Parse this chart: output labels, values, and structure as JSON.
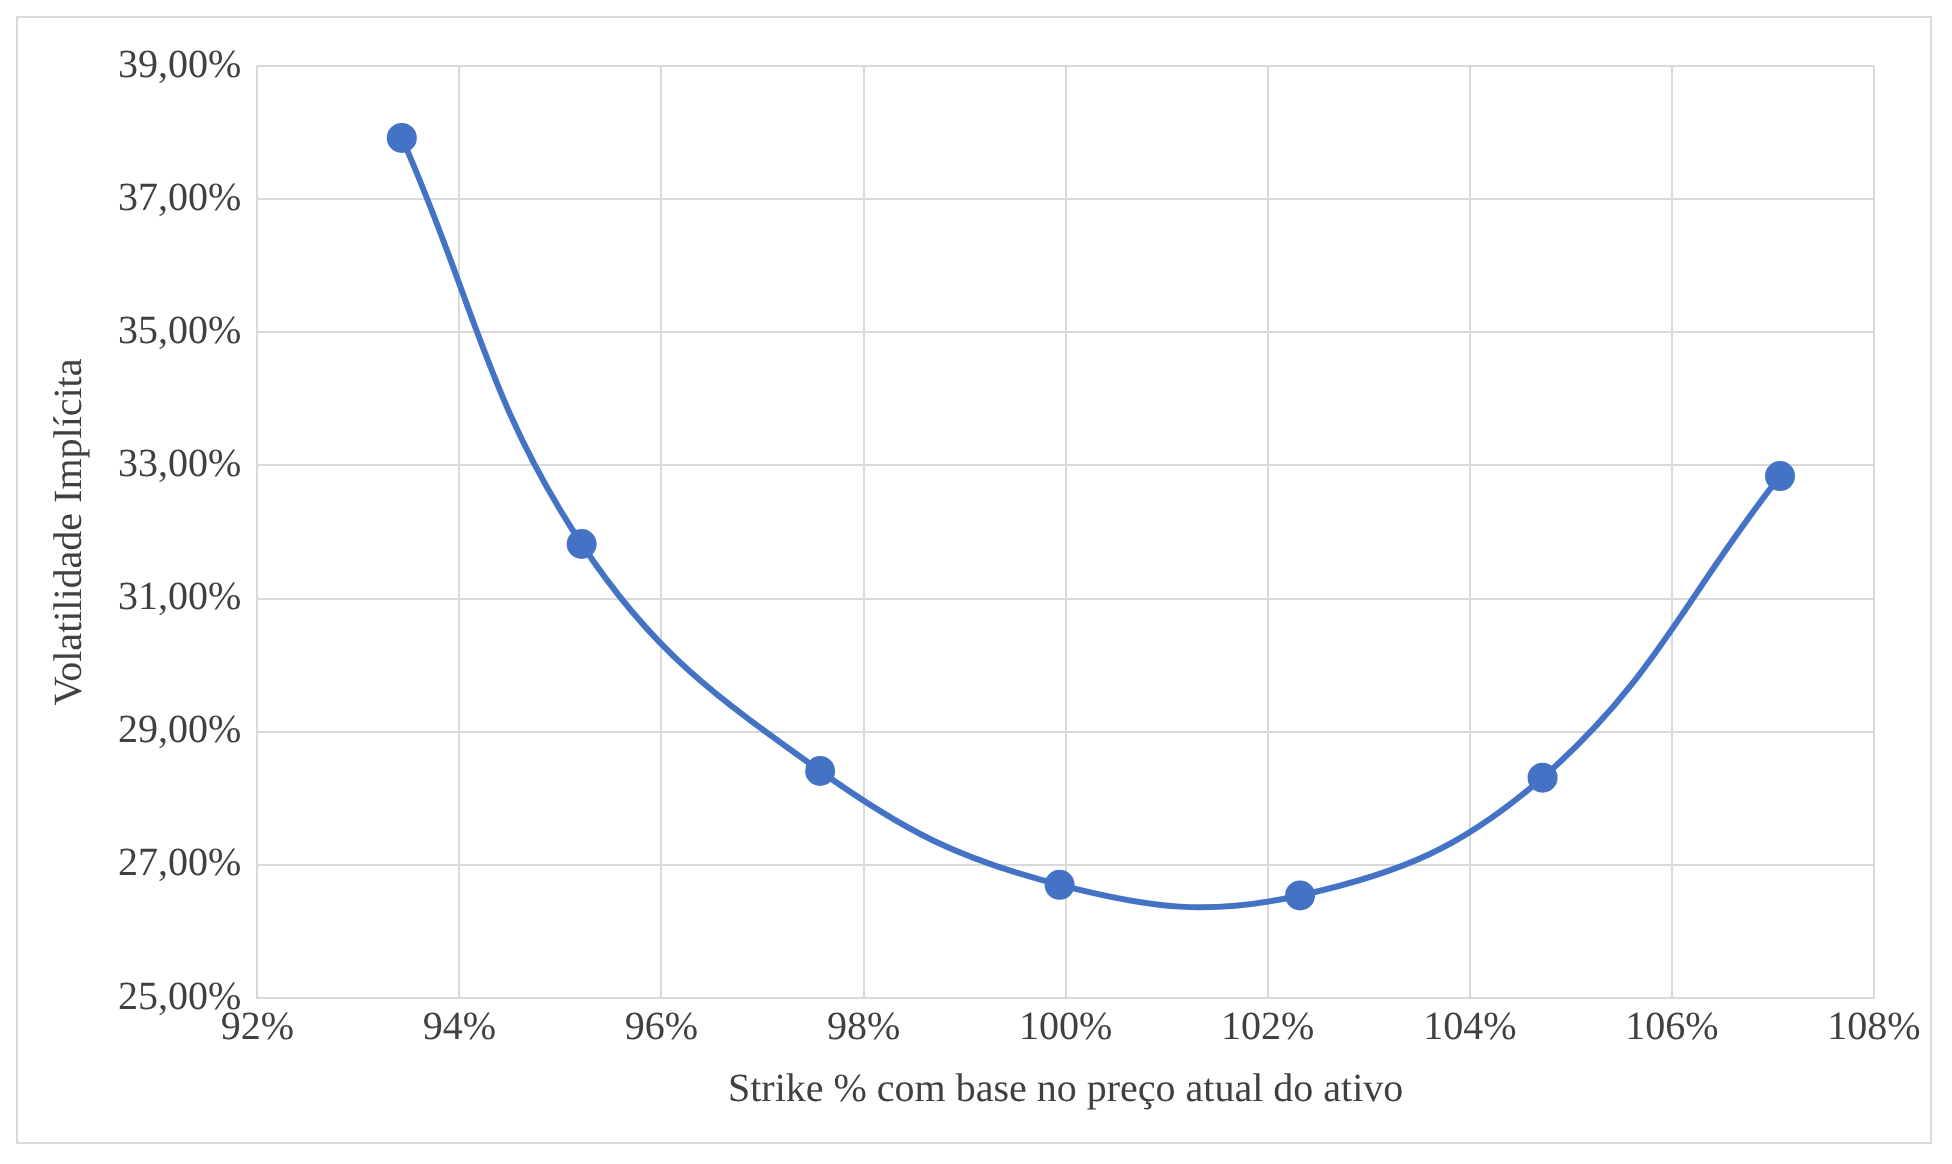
{
  "chart_data": {
    "type": "line",
    "xlabel": "Strike % com base no preço atual do ativo",
    "ylabel": "Volatilidade Implícita",
    "x": [
      93.43,
      95.21,
      97.57,
      99.94,
      102.32,
      104.72,
      107.07
    ],
    "series": [
      {
        "color": "#4472c4",
        "values": [
          37.92,
          31.82,
          28.41,
          26.7,
          26.54,
          28.31,
          32.84
        ]
      }
    ],
    "xlim": [
      92,
      108
    ],
    "xticks": [
      {
        "value": 92,
        "label": "92%"
      },
      {
        "value": 94,
        "label": "94%"
      },
      {
        "value": 96,
        "label": "96%"
      },
      {
        "value": 98,
        "label": "98%"
      },
      {
        "value": 100,
        "label": "100%"
      },
      {
        "value": 102,
        "label": "102%"
      },
      {
        "value": 104,
        "label": "104%"
      },
      {
        "value": 106,
        "label": "106%"
      },
      {
        "value": 108,
        "label": "108%"
      }
    ],
    "ylim": [
      25,
      39
    ],
    "yticks": [
      {
        "value": 25,
        "label": "25,00%"
      },
      {
        "value": 27,
        "label": "27,00%"
      },
      {
        "value": 29,
        "label": "29,00%"
      },
      {
        "value": 31,
        "label": "31,00%"
      },
      {
        "value": 33,
        "label": "33,00%"
      },
      {
        "value": 35,
        "label": "35,00%"
      },
      {
        "value": 37,
        "label": "37,00%"
      },
      {
        "value": 39,
        "label": "39,00%"
      }
    ],
    "grid": true,
    "legend": false,
    "marker": "circle",
    "line_style": "solid"
  }
}
